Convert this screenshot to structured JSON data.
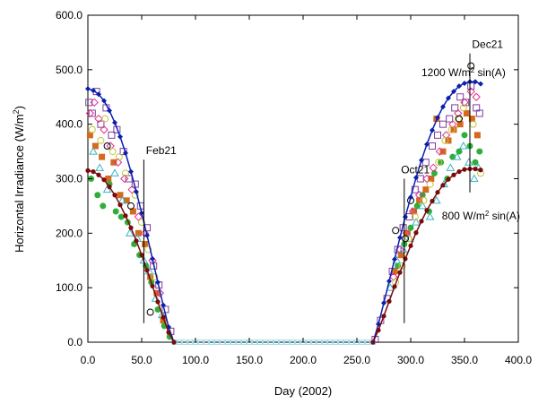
{
  "chart_data": {
    "type": "scatter",
    "xlabel": "Day (2002)",
    "ylabel_main": "Horizontal Irradiance (W/m",
    "ylabel_sup": "2",
    "ylabel_close": ")",
    "xlim": [
      0,
      400
    ],
    "ylim": [
      0,
      600
    ],
    "xticks": [
      "0.0",
      "50.0",
      "100.0",
      "150.0",
      "200.0",
      "250.0",
      "300.0",
      "350.0",
      "400.0"
    ],
    "yticks": [
      "0.0",
      "100.0",
      "200.0",
      "300.0",
      "400.0",
      "500.0",
      "600.0"
    ],
    "grid": false,
    "legend": "none",
    "annotations": [
      {
        "label": "Feb21",
        "x": 52,
        "y_from": 35,
        "y_to": 335,
        "label_x": 54,
        "label_y": 345
      },
      {
        "label": "Oct21",
        "x": 294,
        "y_from": 35,
        "y_to": 300,
        "label_x": 291,
        "label_y": 310
      },
      {
        "label": "Dec21",
        "x": 355,
        "y_from": 275,
        "y_to": 530,
        "label_x": 357,
        "label_y": 540
      }
    ],
    "curve_labels": [
      {
        "id": "curve-1200",
        "text": "1200 W/m",
        "sup": "2",
        "tail": " sin(A)",
        "x": 310,
        "y": 488
      },
      {
        "id": "curve-800",
        "text": "800 W/m",
        "sup": "2",
        "tail": " sin(A)",
        "x": 329,
        "y": 225
      }
    ],
    "series": [
      {
        "kind": "model",
        "color": "#0b1fae",
        "marker": "diamond",
        "x": [
          0,
          5,
          10,
          15,
          20,
          25,
          30,
          35,
          40,
          45,
          50,
          55,
          60,
          65,
          70,
          75,
          80,
          265,
          270,
          275,
          280,
          285,
          290,
          295,
          300,
          305,
          310,
          315,
          320,
          325,
          330,
          335,
          340,
          345,
          350,
          355,
          360,
          365
        ],
        "y": [
          465,
          462,
          455,
          443,
          425,
          403,
          377,
          347,
          313,
          276,
          237,
          196,
          153,
          110,
          68,
          28,
          0,
          0,
          33,
          72,
          112,
          152,
          192,
          230,
          266,
          302,
          334,
          363,
          389,
          412,
          432,
          448,
          460,
          470,
          475,
          478,
          478,
          474
        ]
      },
      {
        "kind": "model",
        "color": "#7a0b0b",
        "marker": "circle",
        "x": [
          0,
          5,
          10,
          15,
          20,
          25,
          30,
          35,
          40,
          45,
          50,
          55,
          60,
          65,
          70,
          75,
          80,
          265,
          270,
          275,
          280,
          285,
          290,
          295,
          300,
          305,
          310,
          315,
          320,
          325,
          330,
          335,
          340,
          345,
          350,
          355,
          360,
          365
        ],
        "y": [
          315,
          313,
          307,
          298,
          285,
          270,
          252,
          232,
          210,
          186,
          160,
          132,
          103,
          74,
          46,
          18,
          0,
          0,
          22,
          48,
          75,
          102,
          128,
          153,
          177,
          201,
          222,
          242,
          259,
          275,
          288,
          299,
          307,
          313,
          317,
          318,
          318,
          316
        ]
      },
      {
        "kind": "measured",
        "color": "#7b3fa0",
        "marker": "open-square",
        "x": [
          1,
          4,
          8,
          12,
          17,
          22,
          27,
          33,
          38,
          44,
          49,
          55,
          61,
          66,
          72,
          77,
          267,
          272,
          278,
          283,
          288,
          293,
          299,
          304,
          309,
          314,
          320,
          325,
          330,
          336,
          341,
          346,
          351,
          356,
          361,
          364
        ],
        "y": [
          440,
          420,
          460,
          400,
          430,
          380,
          390,
          350,
          300,
          290,
          250,
          210,
          140,
          105,
          60,
          20,
          5,
          40,
          80,
          130,
          170,
          210,
          230,
          280,
          300,
          330,
          360,
          380,
          400,
          410,
          430,
          450,
          440,
          470,
          430,
          420
        ]
      },
      {
        "kind": "measured",
        "color": "#d46a1e",
        "marker": "filled-square",
        "x": [
          2,
          7,
          13,
          19,
          24,
          30,
          36,
          42,
          47,
          53,
          58,
          64,
          70,
          285,
          291,
          297,
          303,
          308,
          314,
          319,
          324,
          330,
          335,
          340,
          346,
          352,
          357,
          362
        ],
        "y": [
          380,
          360,
          340,
          300,
          330,
          270,
          260,
          240,
          200,
          180,
          120,
          90,
          40,
          130,
          160,
          200,
          240,
          260,
          280,
          300,
          410,
          350,
          370,
          390,
          400,
          420,
          410,
          380
        ]
      },
      {
        "kind": "measured",
        "color": "#2fae3a",
        "marker": "filled-circle",
        "x": [
          3,
          9,
          14,
          20,
          26,
          31,
          37,
          43,
          48,
          54,
          59,
          65,
          71,
          76,
          288,
          294,
          300,
          306,
          311,
          317,
          322,
          328,
          334,
          339,
          345,
          350,
          355,
          360,
          364
        ],
        "y": [
          300,
          270,
          250,
          290,
          240,
          230,
          220,
          180,
          160,
          140,
          110,
          60,
          30,
          10,
          140,
          180,
          210,
          250,
          270,
          240,
          310,
          330,
          300,
          340,
          350,
          380,
          360,
          330,
          350
        ]
      },
      {
        "kind": "measured",
        "color": "#3bb3c4",
        "marker": "open-triangle",
        "x": [
          5,
          11,
          18,
          25,
          32,
          39,
          46,
          52,
          57,
          63,
          69,
          281,
          287,
          293,
          299,
          305,
          311,
          318,
          324,
          331,
          337,
          343,
          349,
          354,
          359,
          363
        ],
        "y": [
          350,
          320,
          280,
          310,
          260,
          200,
          190,
          150,
          130,
          80,
          50,
          100,
          150,
          170,
          190,
          220,
          250,
          230,
          260,
          290,
          320,
          340,
          360,
          330,
          300,
          320
        ]
      },
      {
        "kind": "measured",
        "color": "#e02f8f",
        "marker": "open-diamond",
        "x": [
          2,
          6,
          10,
          15,
          21,
          28,
          34,
          41,
          47,
          53,
          60,
          67,
          284,
          290,
          296,
          302,
          308,
          315,
          321,
          327,
          333,
          339,
          344,
          350,
          356,
          361
        ],
        "y": [
          420,
          440,
          410,
          390,
          360,
          330,
          300,
          280,
          230,
          200,
          150,
          90,
          120,
          170,
          200,
          240,
          270,
          300,
          320,
          350,
          380,
          400,
          420,
          440,
          460,
          450
        ]
      },
      {
        "kind": "measured",
        "color": "#c8c23a",
        "marker": "open-circle",
        "x": [
          4,
          12,
          16,
          23,
          29,
          35,
          44,
          50,
          56,
          62,
          286,
          292,
          298,
          304,
          312,
          318,
          326,
          332,
          338,
          344,
          349,
          358,
          365
        ],
        "y": [
          390,
          370,
          410,
          350,
          340,
          310,
          270,
          220,
          170,
          120,
          110,
          140,
          190,
          230,
          260,
          290,
          330,
          370,
          390,
          410,
          430,
          400,
          310
        ]
      },
      {
        "kind": "measured",
        "color": "#000000",
        "marker": "open-circle",
        "x": [
          18,
          40,
          58,
          286,
          295,
          300,
          345,
          356
        ],
        "y": [
          360,
          250,
          55,
          205,
          190,
          260,
          410,
          507
        ]
      },
      {
        "kind": "measured",
        "color": "#a0e0f0",
        "marker": "tiny-square",
        "x": [
          80,
          85,
          90,
          95,
          100,
          105,
          110,
          115,
          120,
          125,
          130,
          135,
          140,
          145,
          150,
          155,
          160,
          165,
          170,
          175,
          180,
          185,
          190,
          195,
          200,
          205,
          210,
          215,
          220,
          225,
          230,
          235,
          240,
          245,
          250,
          255,
          260,
          265
        ],
        "y": [
          0,
          0,
          0,
          0,
          0,
          0,
          0,
          0,
          0,
          0,
          0,
          0,
          0,
          0,
          0,
          0,
          0,
          0,
          0,
          0,
          0,
          0,
          0,
          0,
          0,
          0,
          0,
          0,
          0,
          0,
          0,
          0,
          0,
          0,
          0,
          0,
          0,
          0
        ]
      }
    ]
  }
}
